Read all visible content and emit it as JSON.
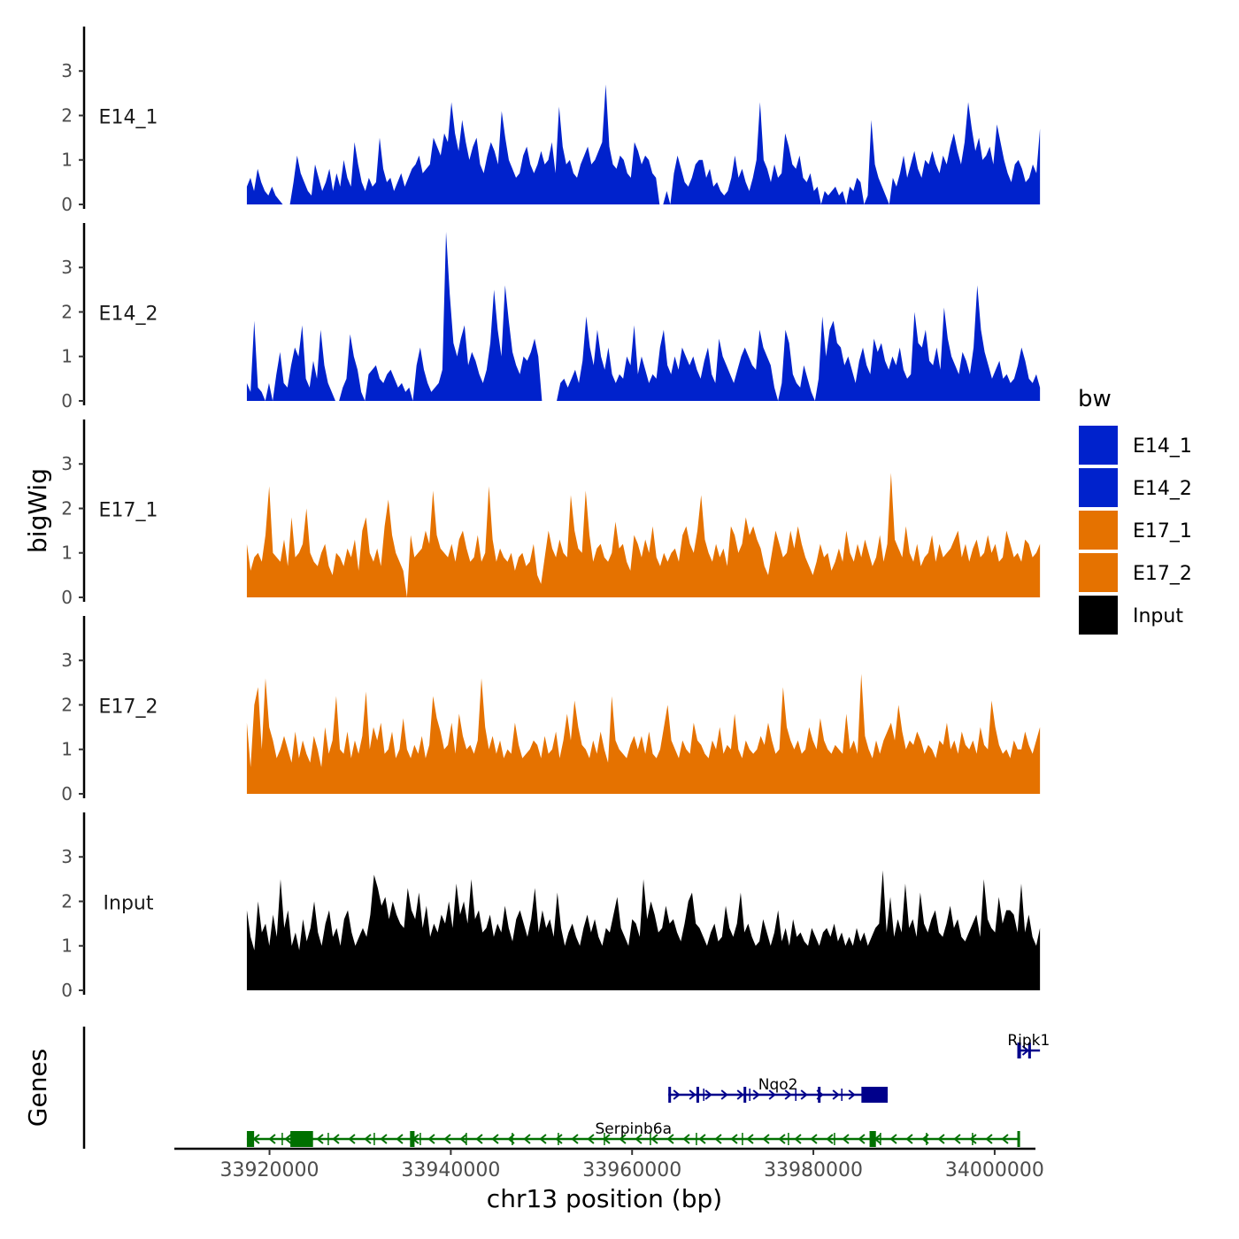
{
  "chart_data": {
    "type": "area",
    "x_axis": {
      "label": "chr13 position (bp)",
      "range": [
        33909500,
        34004500
      ],
      "ticks": [
        33920000,
        33940000,
        33960000,
        33980000,
        34000000
      ],
      "tick_labels": [
        "33920000",
        "33940000",
        "33960000",
        "33980000",
        "34000000"
      ]
    },
    "y_axis": {
      "label": "bigWig",
      "range": [
        -0.1,
        4.0
      ],
      "ticks": [
        0,
        1,
        2,
        3
      ],
      "tick_labels": [
        "0",
        "1",
        "2",
        "3"
      ]
    },
    "data_x_range": [
      33917500,
      34005000
    ],
    "legend": {
      "title": "bw",
      "position": "right",
      "entries": [
        "E14_1",
        "E14_2",
        "E17_1",
        "E17_2",
        "Input"
      ]
    },
    "colors": {
      "E14_1": "#0022cc",
      "E14_2": "#0022cc",
      "E17_1": "#e57200",
      "E17_2": "#e57200",
      "Input": "#000000"
    },
    "series": [
      {
        "name": "E14_1",
        "label": "E14_1",
        "values": [
          0.4,
          0.6,
          0.3,
          0.8,
          0.5,
          0.3,
          0.2,
          0.4,
          0.2,
          0.1,
          0.0,
          0.0,
          0.0,
          0.5,
          1.1,
          0.7,
          0.5,
          0.3,
          0.2,
          0.9,
          0.6,
          0.3,
          0.5,
          0.8,
          0.3,
          0.7,
          0.4,
          1.0,
          0.6,
          0.4,
          1.4,
          0.9,
          0.5,
          0.3,
          0.6,
          0.4,
          0.5,
          1.5,
          0.8,
          0.5,
          0.6,
          0.3,
          0.5,
          0.7,
          0.4,
          0.6,
          0.8,
          0.9,
          1.1,
          0.7,
          0.8,
          0.9,
          1.5,
          1.3,
          1.1,
          1.6,
          1.4,
          2.3,
          1.6,
          1.2,
          1.9,
          1.4,
          1.0,
          1.3,
          1.5,
          0.9,
          0.7,
          1.1,
          1.4,
          1.2,
          0.9,
          2.1,
          1.5,
          1.0,
          0.8,
          0.6,
          0.7,
          1.1,
          1.3,
          0.9,
          0.7,
          0.9,
          1.2,
          0.9,
          1.0,
          1.4,
          0.7,
          2.2,
          1.3,
          0.9,
          1.0,
          0.7,
          0.6,
          0.9,
          1.1,
          1.3,
          0.9,
          1.0,
          1.2,
          1.4,
          2.7,
          1.3,
          0.9,
          0.8,
          1.1,
          1.0,
          0.7,
          0.6,
          1.4,
          1.2,
          0.9,
          1.1,
          1.0,
          0.7,
          0.6,
          0.0,
          0.0,
          0.3,
          0.0,
          0.7,
          1.1,
          0.8,
          0.5,
          0.4,
          0.6,
          0.9,
          1.0,
          1.0,
          0.6,
          0.8,
          0.4,
          0.5,
          0.3,
          0.2,
          0.3,
          0.6,
          1.1,
          0.6,
          0.8,
          0.5,
          0.3,
          0.6,
          1.0,
          2.3,
          1.0,
          0.8,
          0.5,
          0.9,
          0.6,
          0.7,
          1.6,
          1.3,
          0.9,
          0.8,
          1.1,
          0.6,
          0.5,
          0.7,
          0.3,
          0.4,
          0.0,
          0.3,
          0.2,
          0.3,
          0.4,
          0.2,
          0.3,
          0.0,
          0.4,
          0.3,
          0.6,
          0.5,
          0.0,
          0.2,
          1.9,
          0.9,
          0.6,
          0.4,
          0.2,
          0.0,
          0.6,
          0.4,
          0.7,
          1.1,
          0.6,
          0.9,
          1.2,
          0.8,
          0.6,
          1.0,
          0.9,
          1.2,
          0.9,
          0.7,
          1.1,
          0.9,
          1.3,
          1.6,
          1.2,
          0.9,
          1.4,
          2.3,
          1.7,
          1.2,
          1.5,
          1.0,
          1.1,
          1.3,
          0.9,
          1.8,
          1.4,
          1.0,
          0.7,
          0.5,
          0.9,
          1.0,
          0.8,
          0.5,
          0.6,
          0.9,
          0.7,
          1.7
        ]
      },
      {
        "name": "E14_2",
        "label": "E14_2",
        "values": [
          0.4,
          0.2,
          1.8,
          0.3,
          0.2,
          0.0,
          0.4,
          0.0,
          0.6,
          1.1,
          0.4,
          0.3,
          0.8,
          1.2,
          1.0,
          1.7,
          0.5,
          0.3,
          0.9,
          0.5,
          1.6,
          0.8,
          0.4,
          0.2,
          0.0,
          0.0,
          0.3,
          0.5,
          1.5,
          1.0,
          0.7,
          0.2,
          0.0,
          0.6,
          0.7,
          0.8,
          0.5,
          0.4,
          0.6,
          0.7,
          0.5,
          0.3,
          0.4,
          0.2,
          0.3,
          0.0,
          0.8,
          1.2,
          0.7,
          0.4,
          0.2,
          0.3,
          0.4,
          0.7,
          3.8,
          2.4,
          1.3,
          1.0,
          1.4,
          1.7,
          0.8,
          1.1,
          0.9,
          0.6,
          0.4,
          0.7,
          1.3,
          2.5,
          1.6,
          1.0,
          2.6,
          1.8,
          1.1,
          0.8,
          0.6,
          1.0,
          0.9,
          1.1,
          1.4,
          1.0,
          0.0,
          0.0,
          0.0,
          0.0,
          0.0,
          0.4,
          0.5,
          0.3,
          0.5,
          0.7,
          0.4,
          0.9,
          1.9,
          1.2,
          0.8,
          1.6,
          1.0,
          0.7,
          1.2,
          0.6,
          0.4,
          0.6,
          0.5,
          1.0,
          0.8,
          1.7,
          0.6,
          1.0,
          0.7,
          0.4,
          0.6,
          0.5,
          1.2,
          1.6,
          0.8,
          0.6,
          1.0,
          0.7,
          1.2,
          1.0,
          0.8,
          1.0,
          0.7,
          0.5,
          0.9,
          1.2,
          0.6,
          0.4,
          1.4,
          1.0,
          0.8,
          0.6,
          0.4,
          0.7,
          1.0,
          1.2,
          1.0,
          0.8,
          0.7,
          1.6,
          1.2,
          1.0,
          0.8,
          0.3,
          0.0,
          0.4,
          1.6,
          1.3,
          0.6,
          0.4,
          0.3,
          0.8,
          0.5,
          0.2,
          0.0,
          0.5,
          1.9,
          1.0,
          1.6,
          1.8,
          1.3,
          1.2,
          0.8,
          1.0,
          0.7,
          0.4,
          0.9,
          1.2,
          0.8,
          0.6,
          1.4,
          1.1,
          1.3,
          0.9,
          0.7,
          1.0,
          0.8,
          1.2,
          0.7,
          0.5,
          0.6,
          2.0,
          1.3,
          1.2,
          1.6,
          0.9,
          0.8,
          1.2,
          0.7,
          2.1,
          1.4,
          1.0,
          0.8,
          0.6,
          1.1,
          0.9,
          0.6,
          1.2,
          2.6,
          1.6,
          1.1,
          0.8,
          0.5,
          0.7,
          0.9,
          0.5,
          0.6,
          0.4,
          0.5,
          0.8,
          1.2,
          0.9,
          0.5,
          0.4,
          0.6,
          0.3
        ]
      },
      {
        "name": "E17_1",
        "label": "E17_1",
        "values": [
          1.2,
          0.6,
          0.9,
          1.0,
          0.8,
          1.4,
          2.5,
          1.0,
          0.9,
          0.8,
          1.3,
          0.7,
          1.8,
          0.9,
          1.0,
          1.2,
          2.0,
          1.0,
          0.8,
          0.7,
          1.0,
          1.2,
          0.7,
          0.5,
          1.0,
          0.9,
          0.7,
          1.1,
          0.9,
          1.3,
          0.6,
          1.5,
          1.8,
          1.0,
          0.8,
          1.1,
          0.7,
          1.6,
          2.2,
          1.4,
          1.0,
          0.8,
          0.6,
          0.0,
          1.4,
          0.9,
          1.0,
          1.1,
          1.5,
          1.2,
          2.4,
          1.4,
          1.1,
          1.0,
          0.9,
          1.2,
          0.8,
          1.3,
          1.5,
          1.1,
          0.8,
          0.9,
          1.4,
          0.8,
          1.0,
          2.5,
          1.3,
          0.8,
          1.1,
          0.9,
          0.8,
          1.0,
          0.6,
          0.9,
          1.0,
          0.7,
          0.8,
          1.2,
          0.5,
          0.3,
          0.9,
          1.5,
          1.1,
          0.9,
          1.3,
          1.0,
          0.9,
          2.3,
          1.5,
          1.1,
          1.0,
          2.4,
          1.4,
          0.8,
          1.1,
          1.2,
          0.9,
          0.8,
          1.0,
          1.7,
          1.1,
          1.2,
          0.8,
          0.6,
          1.4,
          1.2,
          0.9,
          1.3,
          1.0,
          1.6,
          0.9,
          0.7,
          1.0,
          0.8,
          1.0,
          1.1,
          0.8,
          1.4,
          1.6,
          1.2,
          1.0,
          1.5,
          2.3,
          1.3,
          1.0,
          0.8,
          1.2,
          0.9,
          1.1,
          0.7,
          1.6,
          1.4,
          1.0,
          1.2,
          1.8,
          1.4,
          1.6,
          1.3,
          1.1,
          0.7,
          0.5,
          1.0,
          1.5,
          1.2,
          0.9,
          1.0,
          1.5,
          1.1,
          1.6,
          1.2,
          0.9,
          0.7,
          0.5,
          0.8,
          1.2,
          0.9,
          1.0,
          0.6,
          0.8,
          1.1,
          0.8,
          1.5,
          1.0,
          0.8,
          1.2,
          0.9,
          1.3,
          1.0,
          0.7,
          0.9,
          1.4,
          0.8,
          1.2,
          2.8,
          1.3,
          1.1,
          0.9,
          1.6,
          1.0,
          0.8,
          1.2,
          0.7,
          0.9,
          1.0,
          1.4,
          0.8,
          1.2,
          0.9,
          1.0,
          1.1,
          1.3,
          1.5,
          0.9,
          1.2,
          0.8,
          1.1,
          1.3,
          0.9,
          1.0,
          1.4,
          1.0,
          1.2,
          0.8,
          0.9,
          1.5,
          1.2,
          0.9,
          1.0,
          0.8,
          1.3,
          1.2,
          0.9,
          1.0,
          1.2
        ]
      },
      {
        "name": "E17_2",
        "label": "E17_2",
        "values": [
          1.6,
          0.6,
          2.0,
          2.4,
          1.0,
          2.6,
          1.5,
          1.2,
          0.8,
          1.0,
          1.3,
          1.0,
          0.7,
          1.4,
          0.8,
          1.2,
          0.9,
          0.7,
          1.3,
          1.0,
          0.6,
          1.5,
          0.9,
          1.2,
          2.2,
          1.0,
          0.9,
          1.4,
          0.8,
          1.2,
          0.9,
          1.3,
          2.3,
          1.0,
          1.5,
          1.2,
          1.6,
          0.9,
          1.0,
          1.4,
          0.8,
          1.0,
          1.7,
          1.0,
          0.8,
          1.1,
          0.9,
          1.3,
          0.8,
          1.1,
          2.2,
          1.7,
          1.4,
          1.0,
          1.1,
          1.6,
          0.9,
          1.8,
          1.3,
          1.0,
          1.1,
          0.9,
          1.2,
          2.6,
          1.5,
          1.0,
          1.3,
          0.9,
          1.2,
          0.8,
          1.0,
          0.9,
          1.6,
          1.1,
          0.8,
          0.9,
          1.0,
          1.2,
          1.1,
          0.8,
          1.3,
          0.9,
          1.0,
          1.4,
          0.8,
          1.2,
          1.8,
          1.2,
          2.1,
          1.5,
          1.1,
          1.0,
          0.8,
          1.2,
          0.9,
          1.4,
          1.0,
          0.7,
          2.2,
          1.2,
          1.0,
          0.9,
          0.8,
          1.1,
          1.3,
          1.0,
          1.3,
          0.9,
          1.4,
          0.9,
          0.8,
          1.0,
          1.5,
          2.0,
          1.2,
          1.0,
          0.8,
          1.2,
          1.0,
          0.9,
          1.6,
          1.2,
          1.1,
          0.9,
          0.8,
          1.2,
          1.0,
          1.5,
          0.9,
          1.1,
          1.0,
          1.8,
          1.0,
          0.8,
          1.2,
          1.0,
          0.9,
          1.0,
          1.3,
          1.1,
          1.6,
          1.2,
          0.9,
          1.0,
          2.4,
          1.5,
          1.2,
          1.0,
          1.2,
          0.9,
          1.0,
          1.5,
          1.2,
          1.0,
          1.7,
          1.2,
          1.0,
          0.9,
          1.1,
          1.0,
          0.9,
          1.8,
          1.0,
          1.2,
          0.9,
          2.7,
          1.3,
          1.0,
          0.8,
          1.2,
          0.9,
          1.2,
          1.4,
          1.6,
          1.2,
          2.0,
          1.4,
          1.0,
          1.2,
          1.1,
          1.4,
          1.2,
          0.9,
          1.1,
          1.0,
          0.8,
          1.2,
          1.1,
          1.6,
          1.0,
          1.2,
          0.9,
          1.4,
          1.1,
          1.0,
          1.2,
          0.9,
          1.5,
          1.1,
          1.0,
          2.1,
          1.5,
          1.1,
          0.9,
          1.0,
          0.8,
          1.2,
          1.0,
          1.0,
          1.4,
          1.1,
          0.9,
          1.2,
          1.5
        ]
      },
      {
        "name": "Input",
        "label": "Input",
        "values": [
          1.8,
          1.2,
          0.9,
          2.0,
          1.3,
          1.5,
          1.0,
          1.7,
          1.2,
          2.5,
          1.4,
          1.8,
          1.0,
          1.3,
          0.9,
          1.6,
          1.1,
          1.4,
          2.0,
          1.3,
          1.0,
          1.5,
          1.8,
          1.2,
          1.4,
          1.0,
          1.6,
          1.8,
          1.3,
          1.0,
          1.2,
          1.4,
          1.2,
          1.7,
          2.6,
          2.3,
          1.9,
          2.1,
          1.6,
          2.0,
          1.7,
          1.5,
          1.4,
          2.3,
          1.8,
          1.6,
          2.2,
          1.4,
          1.9,
          1.2,
          1.5,
          1.3,
          1.7,
          1.5,
          2.0,
          1.4,
          2.4,
          1.7,
          2.0,
          1.5,
          2.5,
          1.6,
          1.8,
          1.3,
          1.4,
          1.7,
          1.2,
          1.5,
          1.3,
          1.9,
          1.4,
          1.1,
          1.6,
          1.8,
          1.5,
          1.2,
          1.6,
          2.3,
          1.3,
          1.8,
          1.4,
          1.6,
          1.2,
          2.2,
          1.4,
          1.0,
          1.3,
          1.5,
          1.2,
          1.0,
          1.4,
          1.7,
          1.3,
          1.6,
          1.2,
          1.0,
          1.4,
          1.3,
          1.7,
          2.1,
          1.4,
          1.2,
          1.0,
          1.6,
          1.5,
          1.2,
          2.5,
          1.6,
          2.0,
          1.7,
          1.3,
          1.4,
          1.9,
          1.5,
          1.6,
          1.3,
          1.1,
          1.5,
          2.0,
          2.2,
          1.5,
          1.4,
          1.2,
          1.0,
          1.3,
          1.5,
          1.1,
          1.2,
          1.9,
          1.4,
          1.2,
          1.5,
          2.2,
          1.3,
          1.5,
          1.2,
          1.0,
          1.1,
          1.6,
          1.3,
          1.0,
          1.3,
          1.8,
          1.1,
          1.4,
          1.0,
          1.6,
          1.2,
          1.3,
          1.1,
          1.0,
          1.4,
          1.2,
          1.0,
          1.3,
          1.4,
          1.2,
          1.5,
          1.1,
          1.3,
          1.0,
          1.2,
          1.0,
          1.4,
          1.1,
          1.3,
          1.0,
          1.2,
          1.4,
          1.5,
          2.7,
          1.3,
          2.1,
          1.2,
          1.6,
          1.3,
          2.4,
          1.4,
          1.6,
          1.2,
          2.2,
          1.5,
          1.3,
          1.6,
          1.8,
          1.3,
          1.2,
          1.5,
          1.9,
          1.4,
          1.6,
          1.2,
          1.1,
          1.3,
          1.5,
          1.7,
          1.2,
          2.5,
          1.6,
          1.4,
          1.3,
          2.1,
          1.5,
          1.8,
          1.8,
          1.7,
          1.3,
          2.4,
          1.3,
          1.7,
          1.2,
          1.0,
          1.4
        ]
      }
    ],
    "genes_track": {
      "label": "Genes",
      "genes": [
        {
          "name": "Ripk1",
          "strand": "+",
          "color": "#00008b",
          "start": 34002500,
          "end": 34005000,
          "exons": [
            [
              34002500,
              34002900
            ],
            [
              34003700,
              34004000
            ]
          ],
          "row": 1
        },
        {
          "name": "Nqo2",
          "strand": "+",
          "color": "#00008b",
          "start": 33964000,
          "end": 33988200,
          "exons": [
            [
              33964000,
              33964200
            ],
            [
              33967100,
              33967300
            ],
            [
              33972300,
              33972500
            ],
            [
              33980500,
              33980700
            ],
            [
              33985300,
              33988200
            ]
          ],
          "row": 2
        },
        {
          "name": "Serpinb6a",
          "strand": "-",
          "color": "#007000",
          "start": 33917500,
          "end": 34002800,
          "exons": [
            [
              33917500,
              33918300
            ],
            [
              33922300,
              33924800
            ],
            [
              33935500,
              33936000
            ],
            [
              33986200,
              33986900
            ],
            [
              34002500,
              34002800
            ]
          ],
          "row": 3
        }
      ]
    }
  }
}
